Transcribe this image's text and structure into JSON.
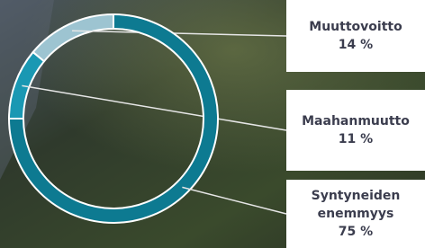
{
  "chart_data": {
    "type": "donut",
    "categories": [
      "Muuttovoitto",
      "Maahanmuutto",
      "Syntyneiden enemmyys"
    ],
    "values": [
      14,
      11,
      75
    ],
    "value_labels": [
      "14 %",
      "11 %",
      "75 %"
    ],
    "colors": [
      "#9dc4d1",
      "#1a98b3",
      "#0d7a91"
    ]
  }
}
